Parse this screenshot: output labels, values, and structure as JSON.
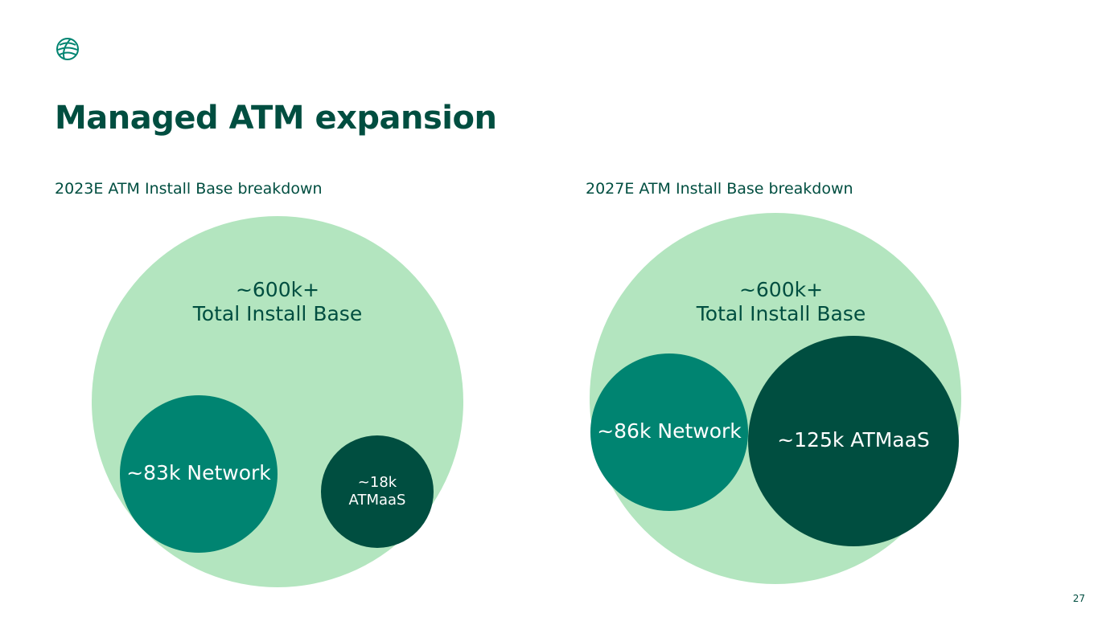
{
  "page": {
    "title": "Managed ATM expansion",
    "page_number": "27",
    "logo_icon": "globe-icon"
  },
  "colors": {
    "title": "#004e40",
    "outer": "#b3e5bf",
    "network": "#008471",
    "atmaas": "#004e40",
    "outer_text": "#004e40",
    "inner_text": "#ffffff"
  },
  "chart_data": [
    {
      "type": "bubble",
      "title": "2023E ATM Install Base breakdown",
      "total": {
        "value": 600000,
        "label_lines": [
          "~600k+",
          "Total Install Base"
        ]
      },
      "bubbles": [
        {
          "name": "Network",
          "value": 83000,
          "label_lines": [
            "~83k Network"
          ]
        },
        {
          "name": "ATMaaS",
          "value": 18000,
          "label_lines": [
            "~18k",
            "ATMaaS"
          ]
        }
      ]
    },
    {
      "type": "bubble",
      "title": "2027E ATM Install Base breakdown",
      "total": {
        "value": 600000,
        "label_lines": [
          "~600k+",
          "Total Install Base"
        ]
      },
      "bubbles": [
        {
          "name": "Network",
          "value": 86000,
          "label_lines": [
            "~86k Network"
          ]
        },
        {
          "name": "ATMaaS",
          "value": 125000,
          "label_lines": [
            "~125k ATMaaS"
          ]
        }
      ]
    }
  ]
}
